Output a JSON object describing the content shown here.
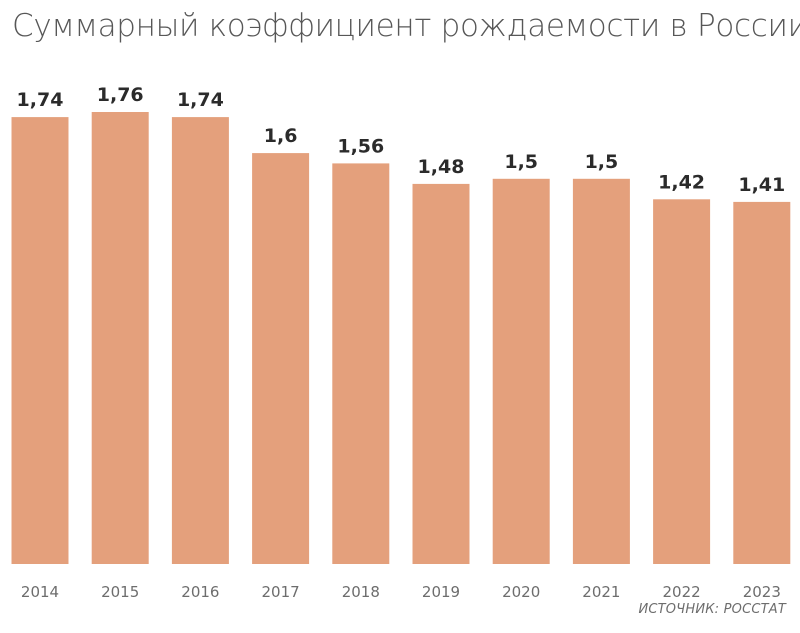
{
  "chart_data": {
    "type": "bar",
    "title": "Суммарный коэффициент рождаемости в России",
    "categories": [
      "2014",
      "2015",
      "2016",
      "2017",
      "2018",
      "2019",
      "2020",
      "2021",
      "2022",
      "2023"
    ],
    "values": [
      1.74,
      1.76,
      1.74,
      1.6,
      1.56,
      1.48,
      1.5,
      1.5,
      1.42,
      1.41
    ],
    "data_labels": [
      "1,74",
      "1,76",
      "1,74",
      "1,6",
      "1,56",
      "1,48",
      "1,5",
      "1,5",
      "1,42",
      "1,41"
    ],
    "xlabel": "",
    "ylabel": "",
    "ylim": [
      0,
      1.76
    ],
    "grid": false,
    "bar_color": "#e4a07c",
    "source": "ИСТОЧНИК: РОССТАТ"
  }
}
